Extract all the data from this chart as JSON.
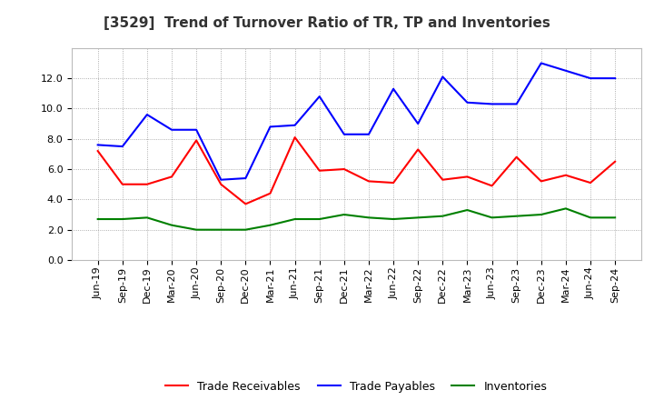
{
  "title": "[3529]  Trend of Turnover Ratio of TR, TP and Inventories",
  "x_labels": [
    "Jun-19",
    "Sep-19",
    "Dec-19",
    "Mar-20",
    "Jun-20",
    "Sep-20",
    "Dec-20",
    "Mar-21",
    "Jun-21",
    "Sep-21",
    "Dec-21",
    "Mar-22",
    "Jun-22",
    "Sep-22",
    "Dec-22",
    "Mar-23",
    "Jun-23",
    "Sep-23",
    "Dec-23",
    "Mar-24",
    "Jun-24",
    "Sep-24"
  ],
  "trade_receivables": [
    7.2,
    5.0,
    5.0,
    5.5,
    7.9,
    5.0,
    3.7,
    4.4,
    8.1,
    5.9,
    6.0,
    5.2,
    5.1,
    7.3,
    5.3,
    5.5,
    4.9,
    6.8,
    5.2,
    5.6,
    5.1,
    6.5
  ],
  "trade_payables": [
    7.6,
    7.5,
    9.6,
    8.6,
    8.6,
    5.3,
    5.4,
    8.8,
    8.9,
    10.8,
    8.3,
    8.3,
    11.3,
    9.0,
    12.1,
    10.4,
    10.3,
    10.3,
    13.0,
    12.5,
    12.0,
    12.0
  ],
  "inventories": [
    2.7,
    2.7,
    2.8,
    2.3,
    2.0,
    2.0,
    2.0,
    2.3,
    2.7,
    2.7,
    3.0,
    2.8,
    2.7,
    2.8,
    2.9,
    3.3,
    2.8,
    2.9,
    3.0,
    3.4,
    2.8,
    2.8
  ],
  "ylim": [
    0.0,
    14.0
  ],
  "yticks": [
    0.0,
    2.0,
    4.0,
    6.0,
    8.0,
    10.0,
    12.0
  ],
  "line_colors": {
    "trade_receivables": "#ff0000",
    "trade_payables": "#0000ff",
    "inventories": "#008000"
  },
  "legend_labels": [
    "Trade Receivables",
    "Trade Payables",
    "Inventories"
  ],
  "bg_color": "#ffffff",
  "plot_bg_color": "#ffffff",
  "grid_color": "#999999",
  "title_fontsize": 11,
  "label_fontsize": 9,
  "tick_fontsize": 8
}
